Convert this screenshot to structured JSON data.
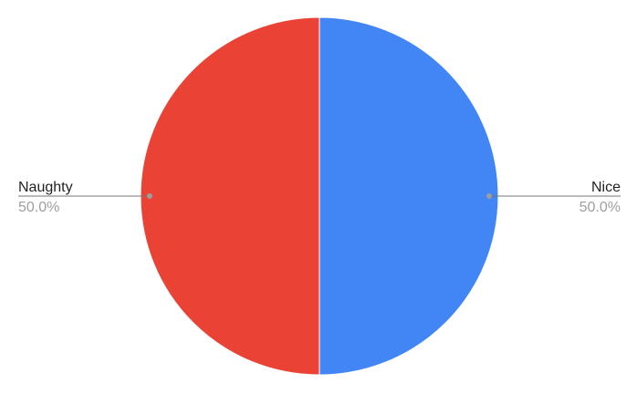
{
  "chart_data": {
    "type": "pie",
    "title": "",
    "legend": "none",
    "slices": [
      {
        "name": "Nice",
        "value": 50.0,
        "label": "50.0%",
        "color": "#4285f4"
      },
      {
        "name": "Naughty",
        "value": 50.0,
        "label": "50.0%",
        "color": "#ea4335"
      }
    ]
  }
}
